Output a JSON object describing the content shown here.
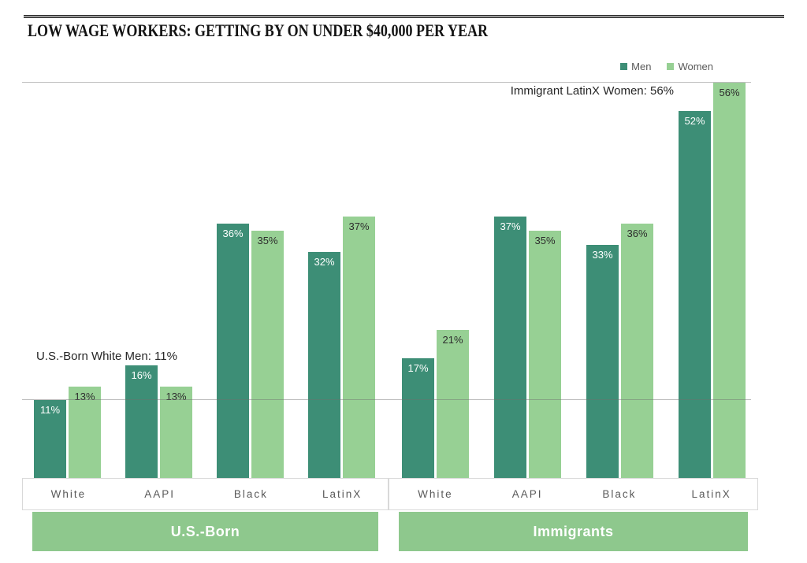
{
  "title": "LOW WAGE WORKERS: GETTING BY ON UNDER $40,000 PER YEAR",
  "colors": {
    "men": "#3d8e76",
    "women": "#97d094",
    "band": "#8ec88d",
    "reference_line": "#6e6e6e",
    "category_label": "#595959"
  },
  "chart_data": {
    "type": "bar",
    "unit": "%",
    "title": "LOW WAGE WORKERS: GETTING BY ON UNDER $40,000 PER YEAR",
    "legend_position": "top-right",
    "ylim": [
      0,
      56
    ],
    "grid": "off",
    "reference_lines": [
      11,
      56
    ],
    "groups": [
      {
        "label": "U.S.-Born",
        "categories": [
          "White",
          "AAPI",
          "Black",
          "LatinX"
        ],
        "series": [
          {
            "name": "Men",
            "values": [
              11,
              16,
              36,
              32
            ]
          },
          {
            "name": "Women",
            "values": [
              13,
              13,
              35,
              37
            ]
          }
        ]
      },
      {
        "label": "Immigrants",
        "categories": [
          "White",
          "AAPI",
          "Black",
          "LatinX"
        ],
        "series": [
          {
            "name": "Men",
            "values": [
              17,
              37,
              33,
              52
            ]
          },
          {
            "name": "Women",
            "values": [
              21,
              35,
              36,
              56
            ]
          }
        ]
      }
    ],
    "annotations": [
      {
        "text": "U.S.-Born White Men: 11%"
      },
      {
        "text": "Immigrant LatinX Women: 56%"
      }
    ]
  }
}
